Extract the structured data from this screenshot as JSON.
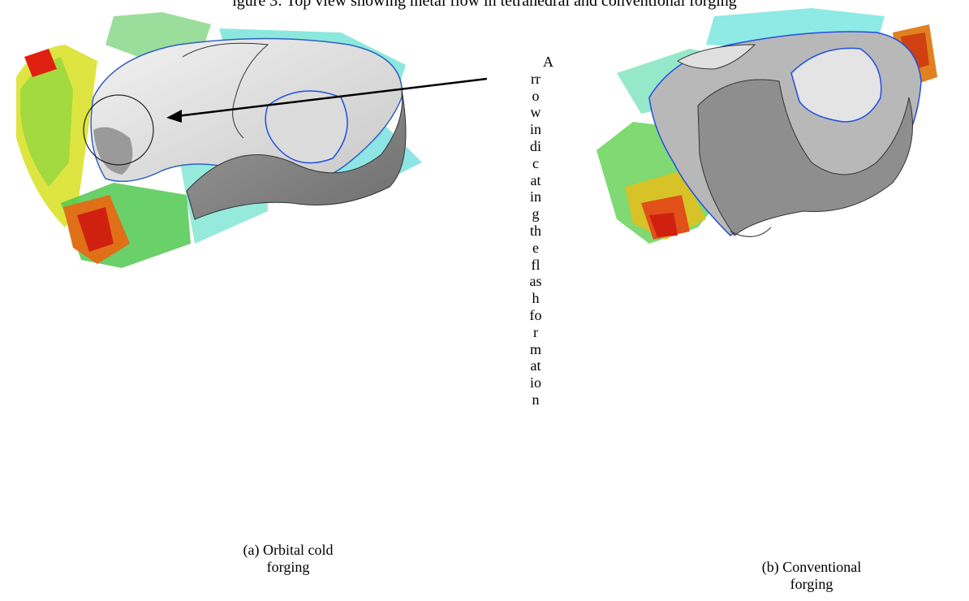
{
  "figure": {
    "top_caption": "igure 3: Top view showing metal flow in tetrahedral and conventional forging",
    "arrow_note_lines": [
      "A",
      "rr",
      "o",
      "w",
      "in",
      "di",
      "c",
      "at",
      "in",
      "g",
      "th",
      "e",
      "fl",
      "as",
      "h",
      "fo",
      "r",
      "m",
      "at",
      "io",
      "n"
    ],
    "panel_a": {
      "caption_line1": "(a) Orbital cold",
      "caption_line2": "forging"
    },
    "panel_b": {
      "caption_line1": "(b) Conventional",
      "caption_line2": "forging"
    },
    "colors": {
      "red": "#e02010",
      "orange": "#f07a18",
      "yellow": "#e8e020",
      "green": "#4cd050",
      "cyan": "#30d8d0",
      "blue": "#2050e0",
      "part_gray": "#8a8a8a",
      "part_light": "#e6e6e6"
    }
  }
}
